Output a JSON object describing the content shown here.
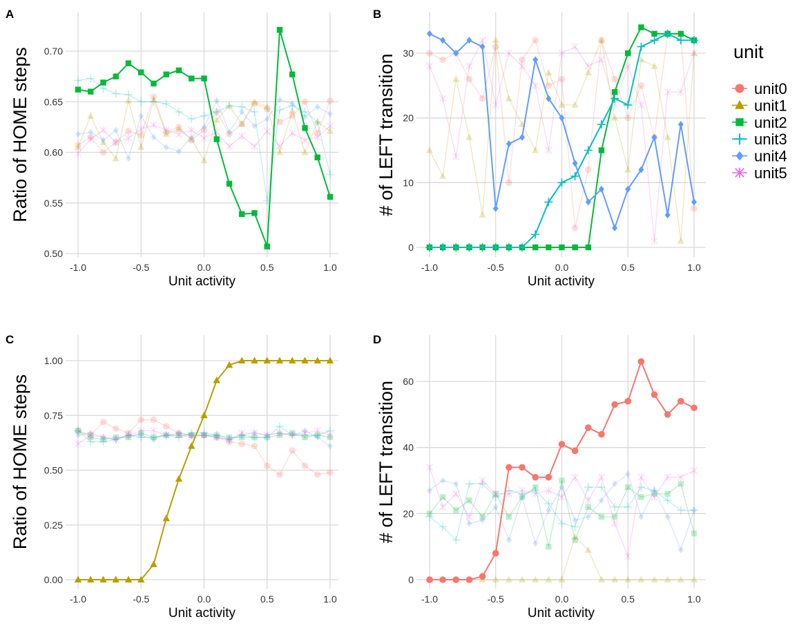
{
  "colors": {
    "unit0": "#F8766D",
    "unit1": "#B79F00",
    "unit2": "#00BA38",
    "unit3": "#00BFC4",
    "unit4": "#619CFF",
    "unit5": "#F564E3"
  },
  "legend": {
    "title": "unit",
    "entries": [
      {
        "name": "unit0",
        "marker": "circle"
      },
      {
        "name": "unit1",
        "marker": "triangle"
      },
      {
        "name": "unit2",
        "marker": "square"
      },
      {
        "name": "unit3",
        "marker": "plus"
      },
      {
        "name": "unit4",
        "marker": "diamond"
      },
      {
        "name": "unit5",
        "marker": "star"
      }
    ]
  },
  "chart_data": [
    {
      "panel": "A",
      "type": "line",
      "xlabel": "Unit activity",
      "ylabel": "Ratio of HOME steps",
      "xlim": [
        -1.0,
        1.0
      ],
      "ylim": [
        0.5,
        0.72
      ],
      "yticks": [
        0.5,
        0.55,
        0.6,
        0.65,
        0.7
      ],
      "ytick_labels": [
        "0.50",
        "0.55",
        "0.60",
        "0.65",
        "0.70"
      ],
      "xticks": [
        -1.0,
        -0.5,
        0.0,
        0.5,
        1.0
      ],
      "xtick_labels": [
        "-1.0",
        "-0.5",
        "0.0",
        "0.5",
        "1.0"
      ],
      "highlight": "unit2",
      "x": [
        -1.0,
        -0.9,
        -0.8,
        -0.7,
        -0.6,
        -0.5,
        -0.4,
        -0.3,
        -0.2,
        -0.1,
        0.0,
        0.1,
        0.2,
        0.3,
        0.4,
        0.5,
        0.6,
        0.7,
        0.8,
        0.9,
        1.0
      ],
      "series": [
        {
          "name": "unit0",
          "values": [
            0.607,
            0.615,
            0.6,
            0.61,
            0.621,
            0.617,
            0.655,
            0.62,
            0.625,
            0.612,
            0.622,
            0.64,
            0.618,
            0.628,
            0.648,
            0.643,
            0.63,
            0.636,
            0.65,
            0.619,
            0.651
          ]
        },
        {
          "name": "unit1",
          "values": [
            0.605,
            0.636,
            0.61,
            0.594,
            0.651,
            0.605,
            0.652,
            0.618,
            0.623,
            0.613,
            0.592,
            0.632,
            0.646,
            0.628,
            0.65,
            0.645,
            0.6,
            0.641,
            0.6,
            0.63,
            0.621
          ]
        },
        {
          "name": "unit2",
          "values": [
            0.662,
            0.66,
            0.669,
            0.675,
            0.688,
            0.679,
            0.668,
            0.677,
            0.681,
            0.673,
            0.673,
            0.613,
            0.569,
            0.539,
            0.54,
            0.507,
            0.721,
            0.677,
            0.624,
            0.595,
            0.556
          ]
        },
        {
          "name": "unit3",
          "values": [
            0.671,
            0.673,
            0.663,
            0.658,
            0.657,
            0.65,
            0.65,
            0.648,
            0.64,
            0.633,
            0.636,
            0.64,
            0.646,
            0.645,
            0.64,
            0.552,
            0.642,
            0.646,
            0.64,
            0.63,
            0.578
          ]
        },
        {
          "name": "unit4",
          "values": [
            0.618,
            0.62,
            0.612,
            0.622,
            0.594,
            0.636,
            0.615,
            0.605,
            0.601,
            0.615,
            0.625,
            0.651,
            0.62,
            0.64,
            0.626,
            0.633,
            0.652,
            0.648,
            0.635,
            0.645,
            0.638
          ]
        },
        {
          "name": "unit5",
          "values": [
            0.599,
            0.613,
            0.622,
            0.61,
            0.614,
            0.623,
            0.627,
            0.622,
            0.618,
            0.622,
            0.614,
            0.62,
            0.606,
            0.616,
            0.606,
            0.621,
            0.606,
            0.619,
            0.612,
            0.615,
            0.626
          ]
        }
      ]
    },
    {
      "panel": "B",
      "type": "line",
      "xlabel": "Unit activity",
      "ylabel": "# of LEFT transition",
      "xlim": [
        -1.0,
        1.0
      ],
      "ylim": [
        0,
        35
      ],
      "yticks": [
        0,
        10,
        20,
        30
      ],
      "ytick_labels": [
        "0",
        "10",
        "20",
        "30"
      ],
      "xticks": [
        -1.0,
        -0.5,
        0.0,
        0.5,
        1.0
      ],
      "xtick_labels": [
        "-1.0",
        "-0.5",
        "0.0",
        "0.5",
        "1.0"
      ],
      "highlight": [
        "unit2",
        "unit3",
        "unit4"
      ],
      "x": [
        -1.0,
        -0.9,
        -0.8,
        -0.7,
        -0.6,
        -0.5,
        -0.4,
        -0.3,
        -0.2,
        -0.1,
        0.0,
        0.1,
        0.2,
        0.3,
        0.4,
        0.5,
        0.6,
        0.7,
        0.8,
        0.9,
        1.0
      ],
      "series": [
        {
          "name": "unit0",
          "values": [
            30,
            29,
            30,
            26,
            23,
            31,
            10,
            29,
            32,
            25,
            26,
            3,
            12,
            32,
            26,
            20,
            25,
            17,
            33,
            33,
            6
          ]
        },
        {
          "name": "unit1",
          "values": [
            15,
            11,
            26,
            17,
            5,
            32,
            23,
            19,
            15,
            27,
            22,
            22,
            27,
            32,
            20,
            12,
            29,
            28,
            17,
            1,
            30
          ]
        },
        {
          "name": "unit2",
          "values": [
            0,
            0,
            0,
            0,
            0,
            0,
            0,
            0,
            0,
            0,
            0,
            0,
            0,
            15,
            24,
            30,
            34,
            33,
            33,
            33,
            32
          ]
        },
        {
          "name": "unit3",
          "values": [
            0,
            0,
            0,
            0,
            0,
            0,
            0,
            0,
            2,
            7,
            10,
            11,
            15,
            19,
            23,
            22,
            31,
            32,
            33,
            32,
            32
          ]
        },
        {
          "name": "unit4",
          "values": [
            33,
            32,
            30,
            32,
            31,
            6,
            16,
            17,
            29,
            23,
            20,
            13,
            7,
            9,
            3,
            9,
            12,
            17,
            5,
            19,
            7
          ]
        },
        {
          "name": "unit5",
          "values": [
            28,
            23,
            14,
            28,
            32,
            22,
            30,
            28,
            25,
            15,
            30,
            31,
            28,
            29,
            22,
            28,
            22,
            1,
            24,
            24,
            30
          ]
        }
      ]
    },
    {
      "panel": "C",
      "type": "line",
      "xlabel": "Unit activity",
      "ylabel": "Ratio of HOME steps",
      "xlim": [
        -1.0,
        1.0
      ],
      "ylim": [
        0,
        1.0
      ],
      "yticks": [
        0,
        0.25,
        0.5,
        0.75,
        1.0
      ],
      "ytick_labels": [
        "0.00",
        "0.25",
        "0.50",
        "0.75",
        "1.00"
      ],
      "xticks": [
        -1.0,
        -0.5,
        0.0,
        0.5,
        1.0
      ],
      "xtick_labels": [
        "-1.0",
        "-0.5",
        "0.0",
        "0.5",
        "1.0"
      ],
      "highlight": "unit1",
      "x": [
        -1.0,
        -0.9,
        -0.8,
        -0.7,
        -0.6,
        -0.5,
        -0.4,
        -0.3,
        -0.2,
        -0.1,
        0.0,
        0.1,
        0.2,
        0.3,
        0.4,
        0.5,
        0.6,
        0.7,
        0.8,
        0.9,
        1.0
      ],
      "series": [
        {
          "name": "unit0",
          "values": [
            0.68,
            0.66,
            0.72,
            0.69,
            0.67,
            0.73,
            0.73,
            0.7,
            0.67,
            0.66,
            0.66,
            0.65,
            0.63,
            0.62,
            0.61,
            0.52,
            0.48,
            0.59,
            0.52,
            0.48,
            0.49
          ]
        },
        {
          "name": "unit1",
          "values": [
            0.0,
            0.0,
            0.0,
            0.0,
            0.0,
            0.0,
            0.07,
            0.28,
            0.46,
            0.61,
            0.75,
            0.91,
            0.98,
            1.0,
            1.0,
            1.0,
            1.0,
            1.0,
            1.0,
            1.0,
            1.0
          ]
        },
        {
          "name": "unit2",
          "values": [
            0.68,
            0.65,
            0.64,
            0.65,
            0.65,
            0.67,
            0.65,
            0.66,
            0.66,
            0.66,
            0.66,
            0.66,
            0.65,
            0.65,
            0.65,
            0.65,
            0.66,
            0.67,
            0.65,
            0.66,
            0.65
          ]
        },
        {
          "name": "unit3",
          "values": [
            0.68,
            0.63,
            0.63,
            0.64,
            0.66,
            0.65,
            0.65,
            0.66,
            0.65,
            0.67,
            0.67,
            0.66,
            0.64,
            0.66,
            0.65,
            0.65,
            0.7,
            0.66,
            0.66,
            0.66,
            0.68
          ]
        },
        {
          "name": "unit4",
          "values": [
            0.66,
            0.67,
            0.65,
            0.64,
            0.66,
            0.66,
            0.64,
            0.66,
            0.67,
            0.66,
            0.66,
            0.65,
            0.64,
            0.66,
            0.67,
            0.66,
            0.67,
            0.66,
            0.68,
            0.65,
            0.61
          ]
        },
        {
          "name": "unit5",
          "values": [
            0.62,
            0.66,
            0.65,
            0.64,
            0.66,
            0.68,
            0.68,
            0.66,
            0.66,
            0.65,
            0.66,
            0.65,
            0.64,
            0.67,
            0.67,
            0.66,
            0.67,
            0.66,
            0.67,
            0.68,
            0.66
          ]
        }
      ]
    },
    {
      "panel": "D",
      "type": "line",
      "xlabel": "Unit activity",
      "ylabel": "# of LEFT transition",
      "xlim": [
        -1.0,
        1.0
      ],
      "ylim": [
        0,
        66
      ],
      "yticks": [
        0,
        20,
        40,
        60
      ],
      "ytick_labels": [
        "0",
        "20",
        "40",
        "60"
      ],
      "xticks": [
        -1.0,
        -0.5,
        0.0,
        0.5,
        1.0
      ],
      "xtick_labels": [
        "-1.0",
        "-0.5",
        "0.0",
        "0.5",
        "1.0"
      ],
      "highlight": "unit0",
      "x": [
        -1.0,
        -0.9,
        -0.8,
        -0.7,
        -0.6,
        -0.5,
        -0.4,
        -0.3,
        -0.2,
        -0.1,
        0.0,
        0.1,
        0.2,
        0.3,
        0.4,
        0.5,
        0.6,
        0.7,
        0.8,
        0.9,
        1.0
      ],
      "series": [
        {
          "name": "unit0",
          "values": [
            0,
            0,
            0,
            0,
            1,
            8,
            34,
            34,
            31,
            31,
            41,
            39,
            46,
            44,
            53,
            54,
            66,
            56,
            50,
            54,
            52
          ]
        },
        {
          "name": "unit1",
          "values": [
            0,
            0,
            0,
            0,
            0,
            0,
            0,
            0,
            0,
            0,
            0,
            13,
            9,
            0,
            0,
            0,
            0,
            0,
            0,
            0,
            0
          ]
        },
        {
          "name": "unit2",
          "values": [
            20,
            25,
            21,
            24,
            19,
            26,
            19,
            25,
            28,
            10,
            30,
            12,
            22,
            19,
            19,
            28,
            25,
            26,
            26,
            29,
            14
          ]
        },
        {
          "name": "unit3",
          "values": [
            19,
            16,
            12,
            29,
            29,
            25,
            27,
            26,
            27,
            23,
            17,
            16,
            28,
            28,
            22,
            22,
            28,
            27,
            24,
            21,
            21
          ]
        },
        {
          "name": "unit4",
          "values": [
            27,
            30,
            29,
            17,
            18,
            22,
            12,
            25,
            11,
            21,
            28,
            18,
            19,
            24,
            29,
            32,
            19,
            27,
            19,
            9,
            21
          ]
        },
        {
          "name": "unit5",
          "values": [
            34,
            22,
            26,
            19,
            30,
            26,
            26,
            27,
            26,
            27,
            25,
            31,
            24,
            31,
            17,
            7,
            31,
            25,
            31,
            31,
            33
          ]
        }
      ]
    }
  ]
}
